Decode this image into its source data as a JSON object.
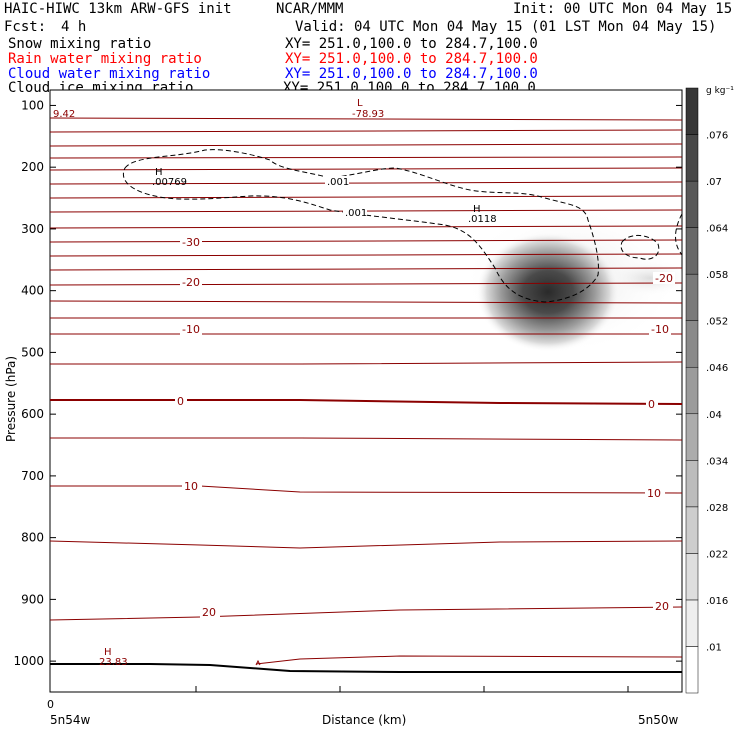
{
  "header": {
    "model_line": "HAIC-HIWC 13km ARW-GFS init",
    "org": "NCAR/MMM",
    "init": "Init: 00 UTC Mon 04 May 15",
    "fcst_label": "Fcst:",
    "fcst_value": "4 h",
    "valid": "Valid: 04 UTC Mon 04 May 15 (01 LST Mon 04 May 15)",
    "fields": [
      {
        "name": "Snow mixing ratio",
        "xy": "XY= 251.0,100.0 to 284.7,100.0",
        "color": "#000000"
      },
      {
        "name": "Rain water mixing ratio",
        "xy": "XY= 251.0,100.0 to 284.7,100.0",
        "color": "#ff0000"
      },
      {
        "name": "Cloud water mixing ratio",
        "xy": "XY= 251.0,100.0 to 284.7,100.0",
        "color": "#0000ff"
      },
      {
        "name": "Cloud ice mixing ratio",
        "xy": "XY= 251.0,100.0 to 284.7,100.0",
        "color": "#000000"
      }
    ]
  },
  "chart_data": {
    "type": "cross-section",
    "ylabel": "Pressure (hPa)",
    "xlabel": "Distance (km)",
    "x_start_label": "5n54w",
    "x_end_label": "5n50w",
    "x_tick_zero": "0",
    "yticks": [
      100,
      200,
      300,
      400,
      500,
      600,
      700,
      800,
      900,
      1000
    ],
    "ylim": [
      1050,
      75
    ],
    "colorbar": {
      "units": "g kg⁻¹",
      "levels": [
        ".01",
        ".016",
        ".022",
        ".028",
        ".034",
        ".04",
        ".046",
        ".052",
        ".058",
        ".064",
        ".07",
        ".076"
      ]
    },
    "temperature_labels": [
      "-30",
      "-20",
      "-10",
      "0",
      "10",
      "20"
    ],
    "annotations": [
      {
        "mark": "L",
        "value": "-78.93"
      },
      {
        "mark": "",
        "value": "9.42"
      },
      {
        "mark": "H",
        "value": ".00769"
      },
      {
        "mark": "",
        "value": ".001"
      },
      {
        "mark": "H",
        "value": ".0118"
      },
      {
        "mark": "H",
        "value": "23.83"
      }
    ]
  }
}
